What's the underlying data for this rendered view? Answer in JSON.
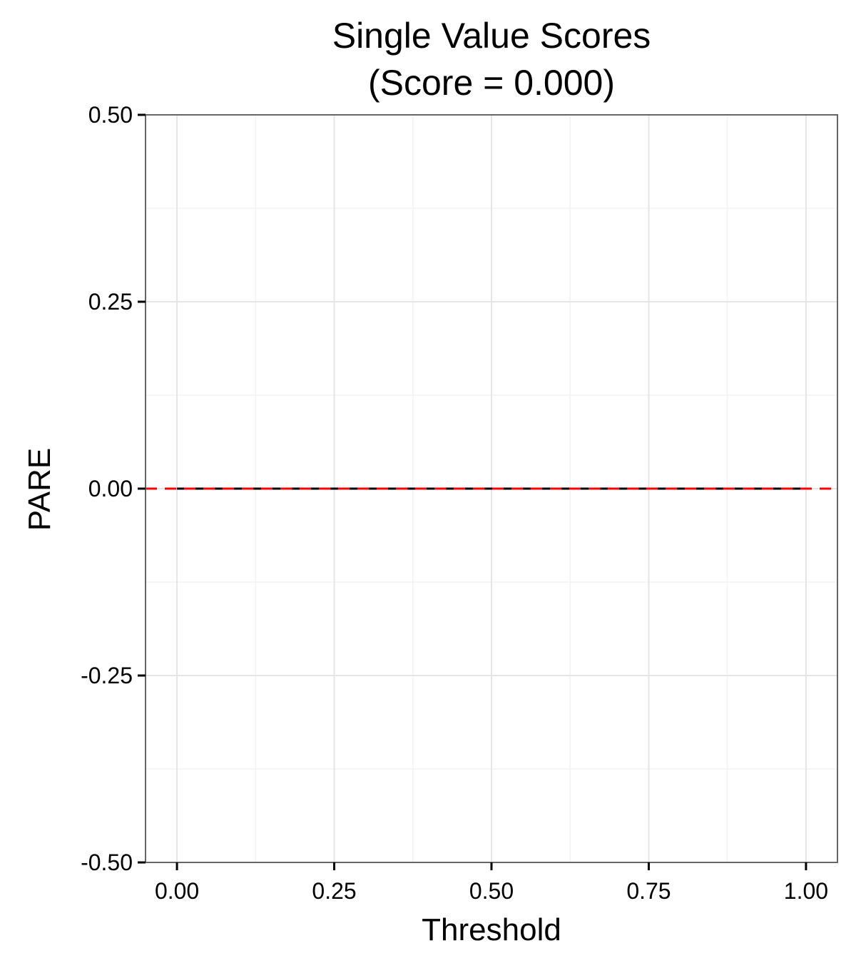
{
  "chart_data": {
    "type": "line",
    "title_line1": "Single Value Scores",
    "title_line2": "(Score = 0.000)",
    "xlabel": "Threshold",
    "ylabel": "PARE",
    "xlim": [
      -0.05,
      1.05
    ],
    "ylim": [
      -0.5,
      0.5
    ],
    "x_ticks": [
      0.0,
      0.25,
      0.5,
      0.75,
      1.0
    ],
    "x_tick_labels": [
      "0.00",
      "0.25",
      "0.50",
      "0.75",
      "1.00"
    ],
    "y_ticks": [
      -0.5,
      -0.25,
      0.0,
      0.25,
      0.5
    ],
    "y_tick_labels": [
      "-0.50",
      "-0.25",
      "0.00",
      "0.25",
      "0.50"
    ],
    "grid": true,
    "series": [
      {
        "color": "#000000",
        "x": [
          0.0,
          0.05,
          0.1,
          0.15,
          0.2,
          0.25,
          0.3,
          0.35,
          0.4,
          0.45,
          0.5,
          0.55,
          0.6,
          0.65,
          0.7,
          0.75,
          0.8,
          0.85,
          0.9,
          0.95,
          1.0
        ],
        "y": [
          0,
          0,
          0,
          0,
          0,
          0,
          0,
          0,
          0,
          0,
          0,
          0,
          0,
          0,
          0,
          0,
          0,
          0,
          0,
          0,
          0
        ]
      }
    ],
    "reference_line": {
      "y": 0.0,
      "color": "#ff0000",
      "style": "dashed"
    },
    "colors": {
      "panel_border": "#666666",
      "grid_major": "#e5e5e5",
      "grid_minor": "#f3f3f3",
      "axis_ticks": "#000000"
    }
  }
}
